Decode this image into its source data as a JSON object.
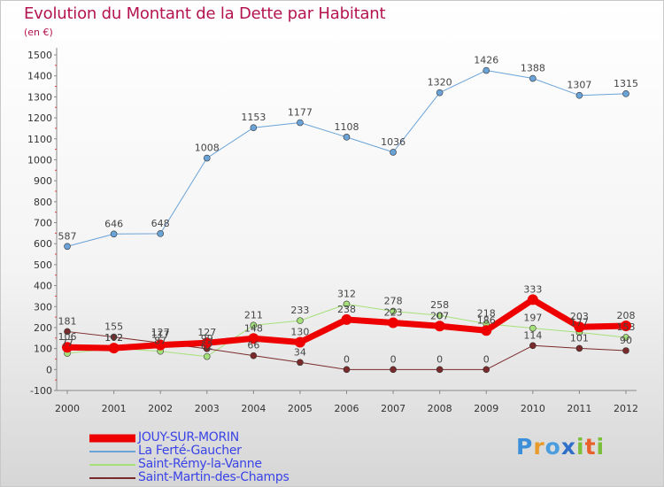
{
  "title": "Evolution du Montant de la Dette par Habitant",
  "subtitle": "(en €)",
  "logo": "Proxiti",
  "chart_data": {
    "type": "line",
    "title": "Evolution du Montant de la Dette par Habitant",
    "subtitle": "(en €)",
    "xlabel": "",
    "ylabel": "",
    "x": [
      "2000",
      "2001",
      "2002",
      "2003",
      "2004",
      "2005",
      "2006",
      "2007",
      "2008",
      "2009",
      "2010",
      "2011",
      "2012"
    ],
    "ylim": [
      -100,
      1500
    ],
    "yticks": [
      "-100",
      "0",
      "100",
      "200",
      "300",
      "400",
      "500",
      "600",
      "700",
      "800",
      "900",
      "1000",
      "1100",
      "1200",
      "1300",
      "1400",
      "1500"
    ],
    "grid": false,
    "legend_position": "bottom",
    "series": [
      {
        "name": "JOUY-SUR-MORIN",
        "color": "#ee0000",
        "width": 7,
        "values": [
          106,
          102,
          117,
          127,
          148,
          130,
          238,
          223,
          207,
          186,
          333,
          203,
          208
        ],
        "labels": [
          "106",
          "102",
          "117",
          "127",
          "148",
          "130",
          "238",
          "223",
          "207",
          "186",
          "333",
          "203",
          "208"
        ]
      },
      {
        "name": "La Ferté-Gaucher",
        "color": "#6aa3d8",
        "width": 1,
        "values": [
          587,
          646,
          648,
          1008,
          1153,
          1177,
          1108,
          1036,
          1320,
          1426,
          1388,
          1307,
          1315
        ],
        "labels": [
          "587",
          "646",
          "648",
          "1008",
          "1153",
          "1177",
          "1108",
          "1036",
          "1320",
          "1426",
          "1388",
          "1307",
          "1315"
        ]
      },
      {
        "name": "Saint-Rémy-la-Vanne",
        "color": "#a6e07a",
        "width": 1,
        "values": [
          77,
          102,
          87,
          62,
          211,
          233,
          312,
          278,
          258,
          218,
          197,
          177,
          153
        ],
        "labels": [
          "77",
          "102",
          "87",
          "62",
          "211",
          "233",
          "312",
          "278",
          "258",
          "218",
          "197",
          "177",
          "153"
        ]
      },
      {
        "name": "Saint-Martin-des-Champs",
        "color": "#7a2a2a",
        "width": 1,
        "values": [
          181,
          155,
          127,
          99,
          66,
          34,
          0,
          0,
          0,
          0,
          114,
          101,
          90
        ],
        "labels": [
          "181",
          "155",
          "127",
          "99",
          "66",
          "34",
          "0",
          "0",
          "0",
          "0",
          "114",
          "101",
          "90"
        ]
      }
    ]
  }
}
